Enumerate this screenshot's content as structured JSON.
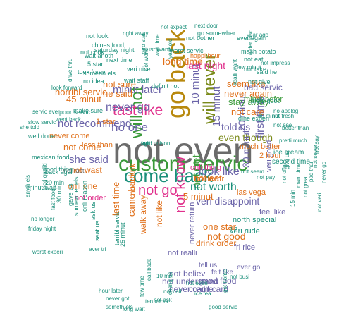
{
  "palette": {
    "grey": "#6b6b6b",
    "green": "#3a9a3a",
    "teal": "#1a8f7a",
    "purple": "#6a63a8",
    "orange": "#e0701a",
    "magenta": "#e0308c",
    "olive": "#7a8a1a",
    "gold": "#b8890e"
  },
  "words": [
    {
      "text": "not even",
      "color": "grey"
    },
    {
      "text": "go back",
      "color": "gold"
    },
    {
      "text": "custom servic",
      "color": "green"
    },
    {
      "text": "come back",
      "color": "teal"
    },
    {
      "text": "will not",
      "color": "green"
    },
    {
      "text": "will never",
      "color": "olive"
    },
    {
      "text": "tast like",
      "color": "magenta"
    },
    {
      "text": "not go",
      "color": "magenta"
    },
    {
      "text": "not know",
      "color": "magenta"
    },
    {
      "text": "no one",
      "color": "purple"
    },
    {
      "text": "never go",
      "color": "purple"
    },
    {
      "text": "not get",
      "color": "green"
    },
    {
      "text": "10 minut",
      "color": "purple"
    },
    {
      "text": "15 minut",
      "color": "purple"
    },
    {
      "text": "first time",
      "color": "purple"
    },
    {
      "text": "look like",
      "color": "purple"
    },
    {
      "text": "not worth",
      "color": "teal"
    },
    {
      "text": "not recommend",
      "color": "purple"
    },
    {
      "text": "she said",
      "color": "purple"
    },
    {
      "text": "minut later",
      "color": "purple"
    },
    {
      "text": "not sure",
      "color": "orange"
    },
    {
      "text": "even though",
      "color": "olive"
    },
    {
      "text": "told us",
      "color": "purple"
    },
    {
      "text": "20 minut",
      "color": "purple"
    },
    {
      "text": "30 minut",
      "color": "purple"
    },
    {
      "text": "veri disappoint",
      "color": "purple"
    },
    {
      "text": "long time",
      "color": "orange"
    },
    {
      "text": "last night",
      "color": "magenta"
    },
    {
      "text": "not come",
      "color": "orange"
    },
    {
      "text": "he said",
      "color": "orange"
    },
    {
      "text": "45 minut",
      "color": "orange"
    },
    {
      "text": "horribl servic",
      "color": "orange"
    },
    {
      "text": "never again",
      "color": "orange"
    },
    {
      "text": "seem like",
      "color": "orange"
    },
    {
      "text": "stay away",
      "color": "green"
    },
    {
      "text": "not care",
      "color": "orange"
    },
    {
      "text": "bad servic",
      "color": "purple"
    },
    {
      "text": "minut befor",
      "color": "green"
    },
    {
      "text": "not good",
      "color": "orange"
    },
    {
      "text": "one star",
      "color": "orange"
    },
    {
      "text": "not eat",
      "color": "orange"
    },
    {
      "text": "5 minut",
      "color": "orange"
    },
    {
      "text": "never come",
      "color": "orange"
    },
    {
      "text": "came back",
      "color": "orange"
    },
    {
      "text": "last time",
      "color": "orange"
    },
    {
      "text": "not think",
      "color": "orange"
    },
    {
      "text": "walk away",
      "color": "orange"
    },
    {
      "text": "not like",
      "color": "orange"
    },
    {
      "text": "not wast",
      "color": "orange"
    },
    {
      "text": "never return",
      "color": "purple"
    },
    {
      "text": "no flavor",
      "color": "orange"
    },
    {
      "text": "onli thing",
      "color": "magenta"
    },
    {
      "text": "much better",
      "color": "orange"
    },
    {
      "text": "2 hour",
      "color": "orange"
    },
    {
      "text": "las vega",
      "color": "orange"
    },
    {
      "text": "feel like",
      "color": "purple"
    },
    {
      "text": "veri good",
      "color": "purple"
    },
    {
      "text": "drink order",
      "color": "orange"
    },
    {
      "text": "not realli",
      "color": "purple"
    },
    {
      "text": "fri rice",
      "color": "purple"
    },
    {
      "text": "veri rude",
      "color": "teal"
    },
    {
      "text": "north special",
      "color": "teal"
    },
    {
      "text": "ice cream",
      "color": "teal"
    },
    {
      "text": "second time",
      "color": "teal"
    },
    {
      "text": "not believ",
      "color": "purple"
    },
    {
      "text": "not understand",
      "color": "purple"
    },
    {
      "text": "never came",
      "color": "purple"
    },
    {
      "text": "credit card",
      "color": "purple"
    },
    {
      "text": "good food",
      "color": "purple"
    },
    {
      "text": "felt like",
      "color": "purple"
    },
    {
      "text": "ever go",
      "color": "purple"
    },
    {
      "text": "tell us",
      "color": "purple"
    },
    {
      "text": "1 star",
      "color": "orange"
    },
    {
      "text": "less than",
      "color": "orange"
    },
    {
      "text": "onli one",
      "color": "orange"
    },
    {
      "text": "not order",
      "color": "magenta"
    },
    {
      "text": "not tast",
      "color": "grey"
    },
    {
      "text": "poor servic",
      "color": "teal"
    },
    {
      "text": "dine experi",
      "color": "teal"
    },
    {
      "text": "not give",
      "color": "teal"
    },
    {
      "text": "said he",
      "color": "teal"
    },
    {
      "text": "pretti good",
      "color": "teal"
    },
    {
      "text": "just want",
      "color": "teal"
    },
    {
      "text": "worst servic",
      "color": "teal"
    },
    {
      "text": "happi hour",
      "color": "orange"
    },
    {
      "text": "next time",
      "color": "teal"
    },
    {
      "text": "wait staff",
      "color": "teal"
    },
    {
      "text": "5 star",
      "color": "teal"
    },
    {
      "text": "make sure",
      "color": "teal"
    },
    {
      "text": "look forward",
      "color": "teal"
    },
    {
      "text": "went back",
      "color": "teal"
    },
    {
      "text": "she told",
      "color": "teal"
    },
    {
      "text": "servic ever",
      "color": "teal"
    },
    {
      "text": "slow servic",
      "color": "teal"
    },
    {
      "text": "well done",
      "color": "teal"
    },
    {
      "text": "mexican food",
      "color": "teal"
    },
    {
      "text": "good thing",
      "color": "teal"
    },
    {
      "text": "minut wait",
      "color": "teal"
    },
    {
      "text": "no longer",
      "color": "teal"
    },
    {
      "text": "friday night",
      "color": "teal"
    },
    {
      "text": "worst experi",
      "color": "teal"
    },
    {
      "text": "long wait",
      "color": "teal"
    },
    {
      "text": "good servic",
      "color": "teal"
    },
    {
      "text": "hour later",
      "color": "teal"
    },
    {
      "text": "never got",
      "color": "teal"
    },
    {
      "text": "someth els",
      "color": "teal"
    },
    {
      "text": "ever again",
      "color": "teal"
    },
    {
      "text": "mash potato",
      "color": "teal"
    },
    {
      "text": "next door",
      "color": "teal"
    },
    {
      "text": "go somewher",
      "color": "teal"
    },
    {
      "text": "not bother",
      "color": "teal"
    },
    {
      "text": "year ago",
      "color": "teal"
    },
    {
      "text": "not expect",
      "color": "teal"
    },
    {
      "text": "not look",
      "color": "teal"
    },
    {
      "text": "chines food",
      "color": "teal"
    },
    {
      "text": "right away",
      "color": "teal"
    },
    {
      "text": "not cook",
      "color": "teal"
    },
    {
      "text": "saturday night",
      "color": "teal"
    },
    {
      "text": "took forev",
      "color": "teal"
    },
    {
      "text": "wait anoth",
      "color": "teal"
    },
    {
      "text": "someon els",
      "color": "teal"
    },
    {
      "text": "no idea",
      "color": "teal"
    },
    {
      "text": "not take",
      "color": "teal"
    },
    {
      "text": "not impress",
      "color": "teal"
    },
    {
      "text": "no apolog",
      "color": "teal"
    },
    {
      "text": "not see",
      "color": "teal"
    },
    {
      "text": "not fresh",
      "color": "teal"
    },
    {
      "text": "pretti much",
      "color": "teal"
    },
    {
      "text": "better than",
      "color": "teal"
    },
    {
      "text": "40 minut",
      "color": "teal"
    },
    {
      "text": "not eat",
      "color": "teal"
    },
    {
      "text": "few minut",
      "color": "teal"
    },
    {
      "text": "realli want",
      "color": "teal"
    },
    {
      "text": "order food",
      "color": "teal"
    },
    {
      "text": "zero star",
      "color": "teal"
    },
    {
      "text": "wait time",
      "color": "teal"
    },
    {
      "text": "year old",
      "color": "teal"
    },
    {
      "text": "veri nice",
      "color": "teal"
    },
    {
      "text": "not work",
      "color": "teal"
    },
    {
      "text": "definit not",
      "color": "teal"
    },
    {
      "text": "drive thru",
      "color": "teal"
    },
    {
      "text": "anyth els",
      "color": "teal"
    },
    {
      "text": "food qualiti",
      "color": "teal"
    },
    {
      "text": "back again",
      "color": "teal"
    },
    {
      "text": "20 min",
      "color": "teal"
    },
    {
      "text": "30 min",
      "color": "teal"
    },
    {
      "text": "gave us",
      "color": "teal"
    },
    {
      "text": "somewher els",
      "color": "teal"
    },
    {
      "text": "fast food",
      "color": "teal"
    },
    {
      "text": "onli reason",
      "color": "teal"
    },
    {
      "text": "ask us",
      "color": "teal"
    },
    {
      "text": "seat us",
      "color": "teal"
    },
    {
      "text": "ever tri",
      "color": "teal"
    },
    {
      "text": "25 minut",
      "color": "teal"
    },
    {
      "text": "terribl servic",
      "color": "teal"
    },
    {
      "text": "10 min",
      "color": "teal"
    },
    {
      "text": "not call",
      "color": "teal"
    },
    {
      "text": "not ask",
      "color": "teal"
    },
    {
      "text": "call back",
      "color": "teal"
    },
    {
      "text": "few time",
      "color": "teal"
    },
    {
      "text": "ten minut",
      "color": "teal"
    },
    {
      "text": "chang us",
      "color": "teal"
    },
    {
      "text": "ice tea",
      "color": "teal"
    },
    {
      "text": "not even",
      "color": "teal"
    },
    {
      "text": "got home",
      "color": "teal"
    },
    {
      "text": "not busi",
      "color": "teal"
    },
    {
      "text": "not offer",
      "color": "teal"
    },
    {
      "text": "15 min",
      "color": "teal"
    },
    {
      "text": "never go",
      "color": "teal"
    },
    {
      "text": "mani time",
      "color": "teal"
    },
    {
      "text": "not great",
      "color": "teal"
    },
    {
      "text": "pad thai",
      "color": "teal"
    },
    {
      "text": "not sever",
      "color": "teal"
    },
    {
      "text": "not say",
      "color": "teal"
    },
    {
      "text": "not seem",
      "color": "teal"
    },
    {
      "text": "not pay",
      "color": "teal"
    },
    {
      "text": "give us",
      "color": "teal"
    },
    {
      "text": "not veri",
      "color": "teal"
    },
    {
      "text": "1 2",
      "color": "teal"
    },
    {
      "text": "food poison",
      "color": "teal"
    },
    {
      "text": "veri",
      "color": "teal"
    },
    {
      "text": "ugh",
      "color": "teal"
    }
  ]
}
